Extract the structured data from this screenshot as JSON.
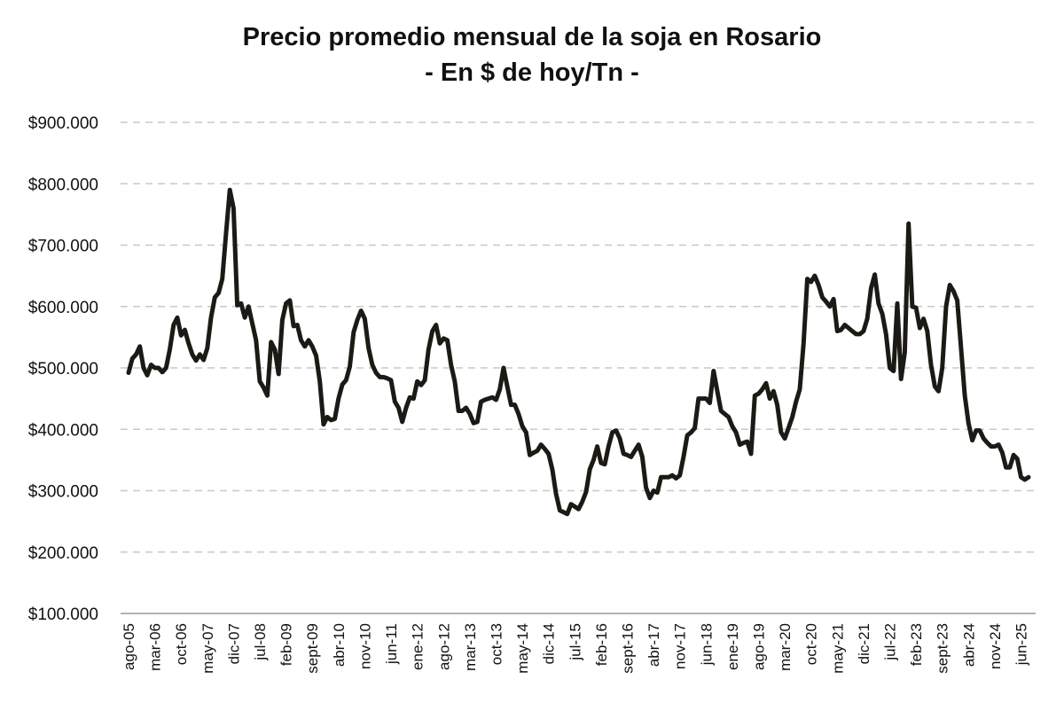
{
  "chart_data": {
    "type": "line",
    "title": "Precio promedio mensual de la soja en Rosario",
    "subtitle": "- En $ de hoy/Tn -",
    "xlabel": "",
    "ylabel": "",
    "ylim": [
      100000,
      900000
    ],
    "yticks": [
      100000,
      200000,
      300000,
      400000,
      500000,
      600000,
      700000,
      800000,
      900000
    ],
    "ytick_labels": [
      "$100.000",
      "$200.000",
      "$300.000",
      "$400.000",
      "$500.000",
      "$600.000",
      "$700.000",
      "$800.000",
      "$900.000"
    ],
    "xtick_labels": [
      "ago-05",
      "mar-06",
      "oct-06",
      "may-07",
      "dic-07",
      "jul-08",
      "feb-09",
      "sept-09",
      "abr-10",
      "nov-10",
      "jun-11",
      "ene-12",
      "ago-12",
      "mar-13",
      "oct-13",
      "may-14",
      "dic-14",
      "jul-15",
      "feb-16",
      "sept-16",
      "abr-17",
      "nov-17",
      "jun-18",
      "ene-19",
      "ago-19",
      "mar-20",
      "oct-20",
      "may-21",
      "dic-21",
      "jul-22",
      "feb-23",
      "sept-23",
      "abr-24",
      "nov-24",
      "jun-25"
    ],
    "grid": true,
    "color": "#1c1a14",
    "x_start": "ago-05",
    "x_frequency": "monthly",
    "values": [
      492000,
      515000,
      522000,
      535000,
      500000,
      488000,
      505000,
      500000,
      500000,
      493000,
      500000,
      530000,
      570000,
      582000,
      553000,
      562000,
      540000,
      522000,
      512000,
      522000,
      513000,
      532000,
      582000,
      615000,
      622000,
      645000,
      720000,
      790000,
      760000,
      602000,
      605000,
      582000,
      600000,
      572000,
      545000,
      478000,
      468000,
      455000,
      542000,
      530000,
      490000,
      578000,
      605000,
      610000,
      568000,
      570000,
      545000,
      535000,
      545000,
      535000,
      520000,
      478000,
      408000,
      420000,
      415000,
      417000,
      450000,
      473000,
      480000,
      502000,
      558000,
      578000,
      593000,
      580000,
      532000,
      505000,
      492000,
      485000,
      485000,
      483000,
      480000,
      445000,
      435000,
      412000,
      435000,
      452000,
      450000,
      478000,
      472000,
      480000,
      530000,
      560000,
      570000,
      540000,
      548000,
      545000,
      505000,
      478000,
      430000,
      430000,
      435000,
      425000,
      410000,
      412000,
      445000,
      448000,
      450000,
      452000,
      448000,
      465000,
      500000,
      470000,
      440000,
      440000,
      425000,
      405000,
      395000,
      358000,
      362000,
      365000,
      375000,
      368000,
      360000,
      335000,
      295000,
      268000,
      265000,
      262000,
      278000,
      274000,
      270000,
      282000,
      298000,
      335000,
      350000,
      372000,
      345000,
      343000,
      372000,
      395000,
      398000,
      385000,
      360000,
      358000,
      355000,
      365000,
      375000,
      355000,
      305000,
      288000,
      300000,
      297000,
      322000,
      322000,
      322000,
      325000,
      320000,
      325000,
      355000,
      390000,
      395000,
      402000,
      450000,
      450000,
      450000,
      443000,
      495000,
      462000,
      430000,
      425000,
      420000,
      405000,
      395000,
      375000,
      378000,
      380000,
      360000,
      455000,
      458000,
      465000,
      475000,
      450000,
      462000,
      440000,
      395000,
      385000,
      402000,
      420000,
      445000,
      465000,
      540000,
      645000,
      640000,
      650000,
      635000,
      615000,
      608000,
      600000,
      612000,
      560000,
      562000,
      570000,
      565000,
      560000,
      555000,
      555000,
      560000,
      580000,
      630000,
      652000,
      605000,
      588000,
      555000,
      500000,
      495000,
      605000,
      482000,
      525000,
      735000,
      600000,
      598000,
      565000,
      580000,
      560000,
      505000,
      470000,
      462000,
      500000,
      600000,
      635000,
      625000,
      610000,
      532000,
      455000,
      410000,
      382000,
      398000,
      398000,
      385000,
      378000,
      372000,
      372000,
      375000,
      362000,
      338000,
      338000,
      358000,
      352000,
      322000,
      318000,
      322000
    ]
  }
}
